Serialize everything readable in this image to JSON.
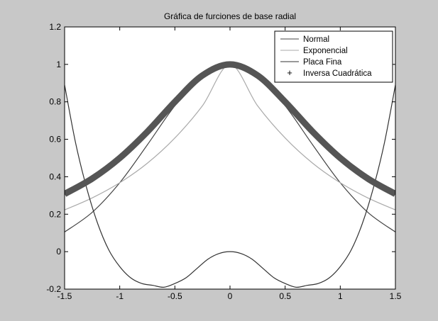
{
  "window": {
    "background": "#c8c8c8",
    "plot_background": "#ffffff"
  },
  "chart_data": {
    "type": "line",
    "title": "Gráfica de furciones de base radial",
    "xlabel": "",
    "ylabel": "",
    "xlim": [
      -1.5,
      1.5
    ],
    "ylim": [
      -0.2,
      1.2
    ],
    "xticks": [
      -1.5,
      -1,
      -0.5,
      0,
      0.5,
      1,
      1.5
    ],
    "xtick_labels": [
      "-1.5",
      "-1",
      "-0.5",
      "0",
      "0.5",
      "1",
      "1.5"
    ],
    "yticks": [
      -0.2,
      0,
      0.2,
      0.4,
      0.6,
      0.8,
      1,
      1.2
    ],
    "ytick_labels": [
      "-0.2",
      "0",
      "0.2",
      "0.4",
      "0.6",
      "0.8",
      "1",
      "1.2"
    ],
    "grid": false,
    "legend_position": "top-right",
    "series": [
      {
        "name": "Normal",
        "color": "#444444",
        "marker": "line",
        "x": [
          -1.5,
          -1.25,
          -1,
          -0.75,
          -0.5,
          -0.25,
          0,
          0.25,
          0.5,
          0.75,
          1,
          1.25,
          1.5
        ],
        "y": [
          0.105,
          0.21,
          0.368,
          0.57,
          0.779,
          0.939,
          1.0,
          0.939,
          0.779,
          0.57,
          0.368,
          0.21,
          0.105
        ]
      },
      {
        "name": "Exponencial",
        "color": "#aaaaaa",
        "marker": "line",
        "x": [
          -1.5,
          -1.25,
          -1,
          -0.75,
          -0.5,
          -0.25,
          0,
          0.25,
          0.5,
          0.75,
          1,
          1.25,
          1.5
        ],
        "y": [
          0.223,
          0.287,
          0.368,
          0.472,
          0.607,
          0.779,
          1.0,
          0.779,
          0.607,
          0.472,
          0.368,
          0.287,
          0.223
        ]
      },
      {
        "name": "Placa Fina",
        "color": "#333333",
        "marker": "line",
        "x": [
          -1.5,
          -1.4,
          -1.3,
          -1.2,
          -1.1,
          -1.0,
          -0.9,
          -0.8,
          -0.7,
          -0.6,
          -0.5,
          -0.4,
          -0.3,
          -0.2,
          -0.1,
          0,
          0.1,
          0.2,
          0.3,
          0.4,
          0.5,
          0.6,
          0.7,
          0.8,
          0.9,
          1.0,
          1.1,
          1.2,
          1.3,
          1.4,
          1.5
        ],
        "y": [
          0.89,
          0.58,
          0.34,
          0.15,
          0.01,
          -0.08,
          -0.14,
          -0.17,
          -0.18,
          -0.19,
          -0.17,
          -0.14,
          -0.09,
          -0.04,
          -0.01,
          0.0,
          -0.01,
          -0.04,
          -0.09,
          -0.14,
          -0.17,
          -0.19,
          -0.18,
          -0.17,
          -0.14,
          -0.08,
          0.01,
          0.15,
          0.34,
          0.58,
          0.89
        ]
      },
      {
        "name": "Inversa Cuadrática",
        "color": "#555555",
        "marker": "+",
        "x": [
          -1.5,
          -1.25,
          -1,
          -0.75,
          -0.5,
          -0.25,
          0,
          0.25,
          0.5,
          0.75,
          1,
          1.25,
          1.5
        ],
        "y": [
          0.308,
          0.39,
          0.5,
          0.64,
          0.8,
          0.941,
          1.0,
          0.941,
          0.8,
          0.64,
          0.5,
          0.39,
          0.308
        ]
      }
    ]
  }
}
